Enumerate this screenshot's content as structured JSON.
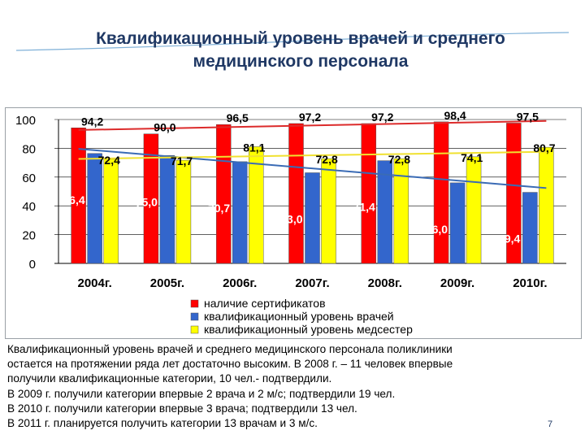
{
  "slide": {
    "title": "Квалификационный уровень врачей и среднего\nмедицинского персонала",
    "page_number": "7",
    "colors": {
      "title": "#1f3864",
      "accent_line": "#4a90c8"
    }
  },
  "chart_data": {
    "type": "bar",
    "title": "",
    "xlabel": "",
    "ylabel": "",
    "ylim": [
      0,
      100
    ],
    "yticks": [
      "0",
      "20",
      "40",
      "60",
      "80",
      "100"
    ],
    "grid": "horizontal",
    "legend_position": "bottom",
    "categories": [
      "2004г.",
      "2005г.",
      "2006г.",
      "2007г.",
      "2008г.",
      "2009г.",
      "2010г."
    ],
    "series": [
      {
        "name": "наличие сертификатов",
        "color": "#ff0000",
        "trend_color": "#dc2b2b",
        "values": [
          94.2,
          90.0,
          96.5,
          97.2,
          97.2,
          98.4,
          97.5
        ],
        "labels": [
          "94,2",
          "90,0",
          "96,5",
          "97,2",
          "97,2",
          "98,4",
          "97,5"
        ]
      },
      {
        "name": "квалификационный уровень врачей",
        "color": "#3366cc",
        "trend_color": "#3a6bb5",
        "values": [
          76.4,
          75.0,
          70.7,
          63.0,
          71.4,
          56.0,
          49.4
        ],
        "labels": [
          "76,4",
          "75,0",
          "70,7",
          "63,0",
          "71,4",
          "56,0",
          "49,4"
        ]
      },
      {
        "name": "квалификационный уровень медсестер",
        "color": "#ffff00",
        "trend_color": "#f0e130",
        "values": [
          72.4,
          71.7,
          81.1,
          72.8,
          72.8,
          74.1,
          80.7
        ],
        "labels": [
          "72,4",
          "71,7",
          "81,1",
          "72,8",
          "72,8",
          "74,1",
          "80,7"
        ]
      }
    ]
  },
  "description": [
    "Квалификационный уровень врачей и среднего медицинского персонала поликлиники",
    "остается на протяжении ряда лет достаточно высоким. В 2008 г. – 11 человек впервые",
    "получили квалификационные категории, 10 чел.- подтвердили.",
    "В 2009 г. получили категории впервые 2 врача и 2 м/с; подтвердили 19 чел.",
    "В 2010 г. получили категории впервые 3 врача; подтвердили 13 чел.",
    "В 2011 г. планируется получить категории 13 врачам и 3 м/с."
  ]
}
